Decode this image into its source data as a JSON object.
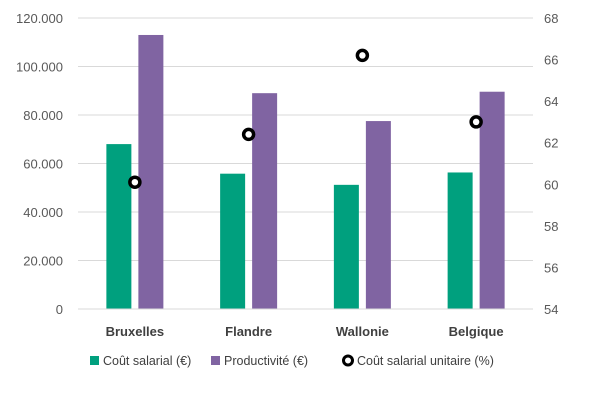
{
  "chart_data": {
    "type": "bar",
    "categories": [
      "Bruxelles",
      "Flandre",
      "Wallonie",
      "Belgique"
    ],
    "series": [
      {
        "name": "Coût salarial (€)",
        "kind": "bar",
        "axis": "left",
        "color": "#00A07E",
        "values": [
          68000,
          55800,
          51200,
          56300
        ]
      },
      {
        "name": "Productivité (€)",
        "kind": "bar",
        "axis": "left",
        "color": "#8064A2",
        "values": [
          113000,
          89000,
          77500,
          89600
        ]
      },
      {
        "name": "Coût salarial unitaire (%)",
        "kind": "scatter",
        "axis": "right",
        "color": "#000000",
        "values": [
          60.1,
          62.4,
          66.2,
          63.0
        ]
      }
    ],
    "y_left": {
      "range": [
        0,
        120000
      ],
      "ticks": [
        0,
        20000,
        40000,
        60000,
        80000,
        100000,
        120000
      ],
      "tick_labels": [
        "0",
        "20.000",
        "40.000",
        "60.000",
        "80.000",
        "100.000",
        "120.000"
      ]
    },
    "y_right": {
      "range": [
        54,
        68
      ],
      "ticks": [
        54,
        56,
        58,
        60,
        62,
        64,
        66,
        68
      ],
      "tick_labels": [
        "54",
        "56",
        "58",
        "60",
        "62",
        "64",
        "66",
        "68"
      ]
    },
    "grid": true,
    "legend_position": "bottom"
  }
}
